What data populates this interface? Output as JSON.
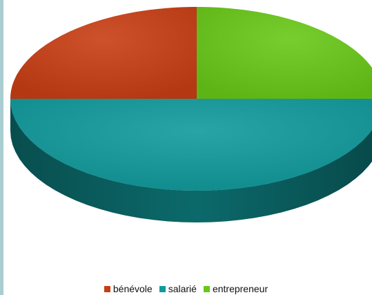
{
  "chart_data": {
    "type": "pie",
    "style": "3d",
    "legend_position": "bottom",
    "categories": [
      "bénévole",
      "salarié",
      "entrepreneur"
    ],
    "values": [
      25,
      50,
      25
    ],
    "unit": "percent",
    "colors": [
      "#c83e14",
      "#119a9c",
      "#68c817"
    ],
    "legend": [
      "bénévole",
      "salarié",
      "entrepreneur"
    ]
  }
}
